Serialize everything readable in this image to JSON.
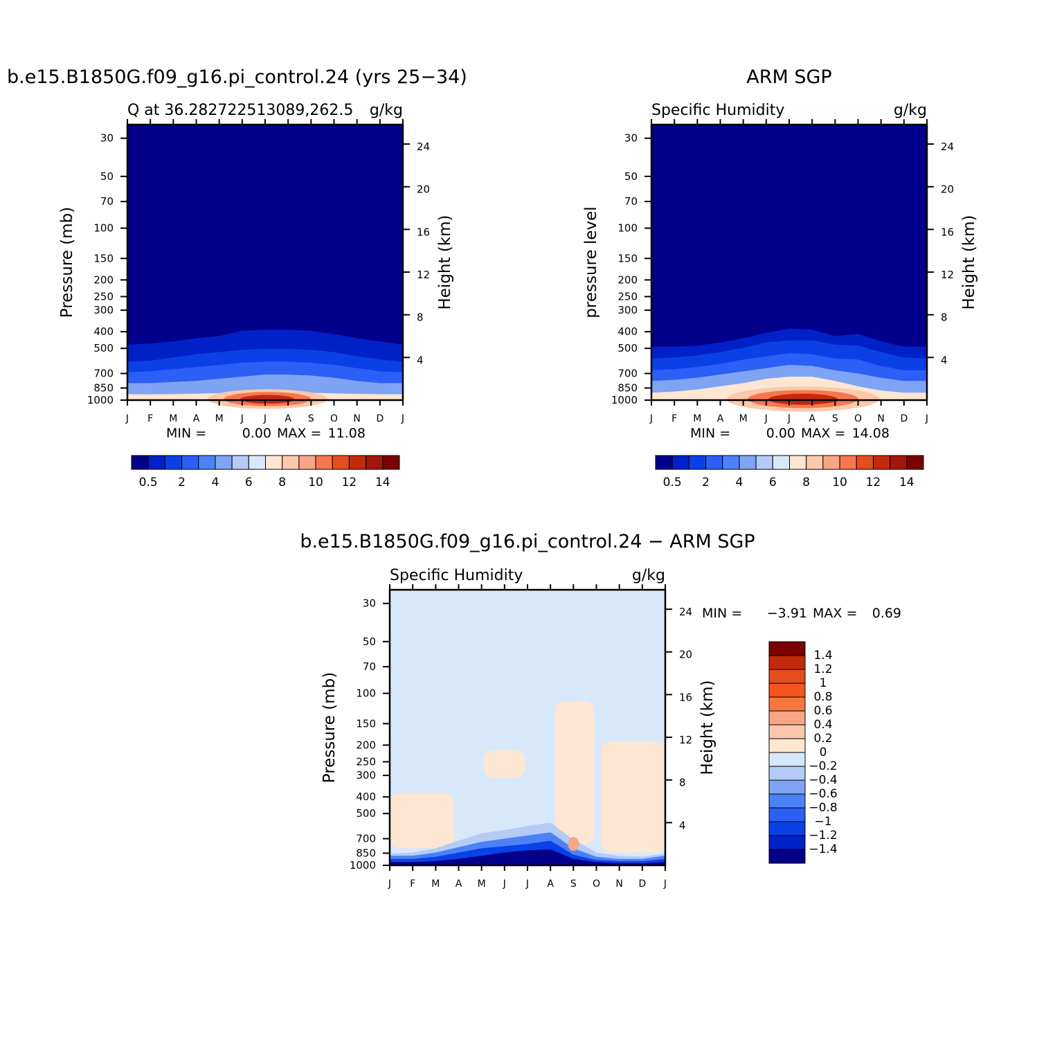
{
  "chart_data": [
    {
      "type": "heatmap",
      "title": "b.e15.B1850G.f09_g16.pi_control.24 (yrs 25−34)",
      "subtitle_left": "Q at 36.282722513089,262.5",
      "subtitle_right": "g/kg",
      "ylabel": "Pressure (mb)",
      "ylabel_right": "Height (km)",
      "x": [
        "J",
        "F",
        "M",
        "A",
        "M",
        "J",
        "J",
        "A",
        "S",
        "O",
        "N",
        "D",
        "J"
      ],
      "pressure_ticks": [
        "30",
        "50",
        "70",
        "100",
        "150",
        "200",
        "250",
        "300",
        "400",
        "500",
        "700",
        "850",
        "1000"
      ],
      "height_ticks": [
        "24",
        "20",
        "16",
        "12",
        "8",
        "4"
      ],
      "min_label": "MIN =",
      "min_value": "0.00",
      "max_label": "MAX =",
      "max_value": "11.08",
      "min": 0.0,
      "max": 11.08,
      "colorbar_ticks": [
        "0.5",
        "2",
        "4",
        "6",
        "8",
        "10",
        "12",
        "14"
      ],
      "colorbar_colors": [
        "#02008a",
        "#0021c8",
        "#0a41e6",
        "#2b5ff5",
        "#4c82f7",
        "#7ea4f3",
        "#b4cbf6",
        "#d7e8fb",
        "#fde6d2",
        "#fbc8ab",
        "#f8a586",
        "#f5774e",
        "#e54d1e",
        "#c22a0a",
        "#a3160c",
        "#7b0203"
      ],
      "profile": {
        "months": [
          1,
          2,
          3,
          4,
          5,
          6,
          7,
          8,
          9,
          10,
          11,
          12,
          13
        ],
        "bands_km": [
          [
            0.55,
            0.54,
            0.56,
            0.6,
            0.66,
            0.72,
            0.77,
            0.76,
            0.7,
            0.63,
            0.58,
            0.55,
            0.55
          ],
          [
            1.6,
            1.6,
            1.7,
            1.8,
            2.0,
            2.2,
            2.4,
            2.4,
            2.3,
            2.1,
            1.8,
            1.6,
            1.6
          ],
          [
            2.6,
            2.7,
            2.9,
            3.1,
            3.3,
            3.5,
            3.6,
            3.6,
            3.5,
            3.3,
            3.0,
            2.7,
            2.6
          ],
          [
            3.6,
            3.7,
            4.0,
            4.3,
            4.5,
            4.7,
            4.8,
            4.8,
            4.7,
            4.5,
            4.1,
            3.8,
            3.6
          ],
          [
            5.2,
            5.3,
            5.5,
            5.8,
            6.0,
            6.5,
            6.6,
            6.6,
            6.5,
            6.2,
            5.8,
            5.5,
            5.2
          ]
        ],
        "peak_month": 7.1,
        "peak_value": 11.08
      }
    },
    {
      "type": "heatmap",
      "title": "ARM SGP",
      "subtitle_left": "Specific Humidity",
      "subtitle_right": "g/kg",
      "ylabel": "pressure level",
      "ylabel_right": "Height (km)",
      "x": [
        "J",
        "F",
        "M",
        "A",
        "M",
        "J",
        "J",
        "A",
        "S",
        "O",
        "N",
        "D",
        "J"
      ],
      "pressure_ticks": [
        "30",
        "50",
        "70",
        "100",
        "150",
        "200",
        "250",
        "300",
        "400",
        "500",
        "700",
        "850",
        "1000"
      ],
      "height_ticks": [
        "24",
        "20",
        "16",
        "12",
        "8",
        "4"
      ],
      "min_label": "MIN =",
      "min_value": "0.00",
      "max_label": "MAX =",
      "max_value": "14.08",
      "min": 0.0,
      "max": 14.08,
      "colorbar_ticks": [
        "0.5",
        "2",
        "4",
        "6",
        "8",
        "10",
        "12",
        "14"
      ],
      "colorbar_colors": [
        "#02008a",
        "#0021c8",
        "#0a41e6",
        "#2b5ff5",
        "#4c82f7",
        "#7ea4f3",
        "#b4cbf6",
        "#d7e8fb",
        "#fde6d2",
        "#fbc8ab",
        "#f8a586",
        "#f5774e",
        "#e54d1e",
        "#c22a0a",
        "#a3160c",
        "#7b0203"
      ],
      "profile": {
        "months": [
          1,
          2,
          3,
          4,
          5,
          6,
          7,
          8,
          9,
          10,
          11,
          12,
          13
        ],
        "bands_km": [
          [
            0.7,
            0.8,
            1.0,
            1.3,
            1.6,
            2.0,
            2.2,
            2.2,
            1.8,
            1.3,
            0.9,
            0.7,
            0.7
          ],
          [
            1.8,
            1.9,
            2.1,
            2.4,
            2.7,
            3.0,
            3.3,
            3.2,
            2.8,
            2.5,
            2.1,
            1.8,
            1.8
          ],
          [
            2.8,
            2.9,
            3.1,
            3.4,
            3.8,
            4.1,
            4.4,
            4.3,
            3.9,
            3.8,
            3.2,
            2.8,
            2.8
          ],
          [
            3.9,
            4.0,
            4.2,
            4.5,
            4.9,
            5.4,
            5.6,
            5.6,
            5.2,
            5.1,
            4.5,
            4.0,
            3.9
          ],
          [
            5.0,
            5.0,
            5.1,
            5.4,
            5.8,
            6.3,
            6.7,
            6.6,
            6.0,
            6.2,
            5.5,
            5.0,
            5.0
          ]
        ],
        "peak_month": 7.6,
        "peak_value": 14.08
      }
    },
    {
      "type": "heatmap",
      "title": "b.e15.B1850G.f09_g16.pi_control.24 − ARM SGP",
      "subtitle_left": "Specific Humidity",
      "subtitle_right": "g/kg",
      "ylabel": "Pressure (mb)",
      "ylabel_right": "Height (km)",
      "x": [
        "J",
        "F",
        "M",
        "A",
        "M",
        "J",
        "J",
        "A",
        "S",
        "O",
        "N",
        "D",
        "J"
      ],
      "pressure_ticks": [
        "30",
        "50",
        "70",
        "100",
        "150",
        "200",
        "250",
        "300",
        "400",
        "500",
        "700",
        "850",
        "1000"
      ],
      "height_ticks": [
        "24",
        "20",
        "16",
        "12",
        "8",
        "4"
      ],
      "min_label": "MIN =",
      "min_value": "−3.91",
      "max_label": "MAX =",
      "max_value": "0.69",
      "min": -3.91,
      "max": 0.69,
      "colorbar_ticks": [
        "1.4",
        "1.2",
        "1",
        "0.8",
        "0.6",
        "0.4",
        "0.2",
        "0",
        "−0.2",
        "−0.4",
        "−0.6",
        "−0.8",
        "−1",
        "−1.2",
        "−1.4"
      ],
      "colorbar_colors": [
        "#7b0203",
        "#c22a0a",
        "#e54d1e",
        "#f5541e",
        "#f8773f",
        "#f8a586",
        "#fbc8ab",
        "#fde6d2",
        "#d7e8fb",
        "#b4cbf6",
        "#7ea4f3",
        "#4c82f7",
        "#2b5ff5",
        "#0a41e6",
        "#0021c8",
        "#02008a"
      ],
      "profile": {
        "months": [
          1,
          2,
          3,
          4,
          5,
          6,
          7,
          8,
          9,
          10,
          11,
          12,
          13
        ],
        "neg_bands_km": [
          [
            0.3,
            0.3,
            0.4,
            0.6,
            0.9,
            1.2,
            1.4,
            1.5,
            0.6,
            0.3,
            0.2,
            0.2,
            0.3
          ],
          [
            0.6,
            0.6,
            0.8,
            1.2,
            1.6,
            1.8,
            2.0,
            2.3,
            1.0,
            0.5,
            0.4,
            0.4,
            0.6
          ],
          [
            0.9,
            0.9,
            1.2,
            1.7,
            2.2,
            2.5,
            2.8,
            3.1,
            1.6,
            0.8,
            0.6,
            0.6,
            0.9
          ],
          [
            1.1,
            1.2,
            1.6,
            2.3,
            3.0,
            3.3,
            3.7,
            4.0,
            2.4,
            1.2,
            0.9,
            0.8,
            1.1
          ]
        ],
        "pos_regions": [
          {
            "month_range": [
              1.0,
              3.8
            ],
            "km_range": [
              1.6,
              6.8
            ]
          },
          {
            "month_range": [
              5.1,
              6.9
            ],
            "km_range": [
              8.2,
              10.8
            ]
          },
          {
            "month_range": [
              8.2,
              9.9
            ],
            "km_range": [
              2.0,
              15.4
            ]
          },
          {
            "month_range": [
              10.2,
              13.0
            ],
            "km_range": [
              1.2,
              11.6
            ]
          }
        ],
        "min_value": -3.91,
        "max_value": 0.69
      }
    }
  ]
}
